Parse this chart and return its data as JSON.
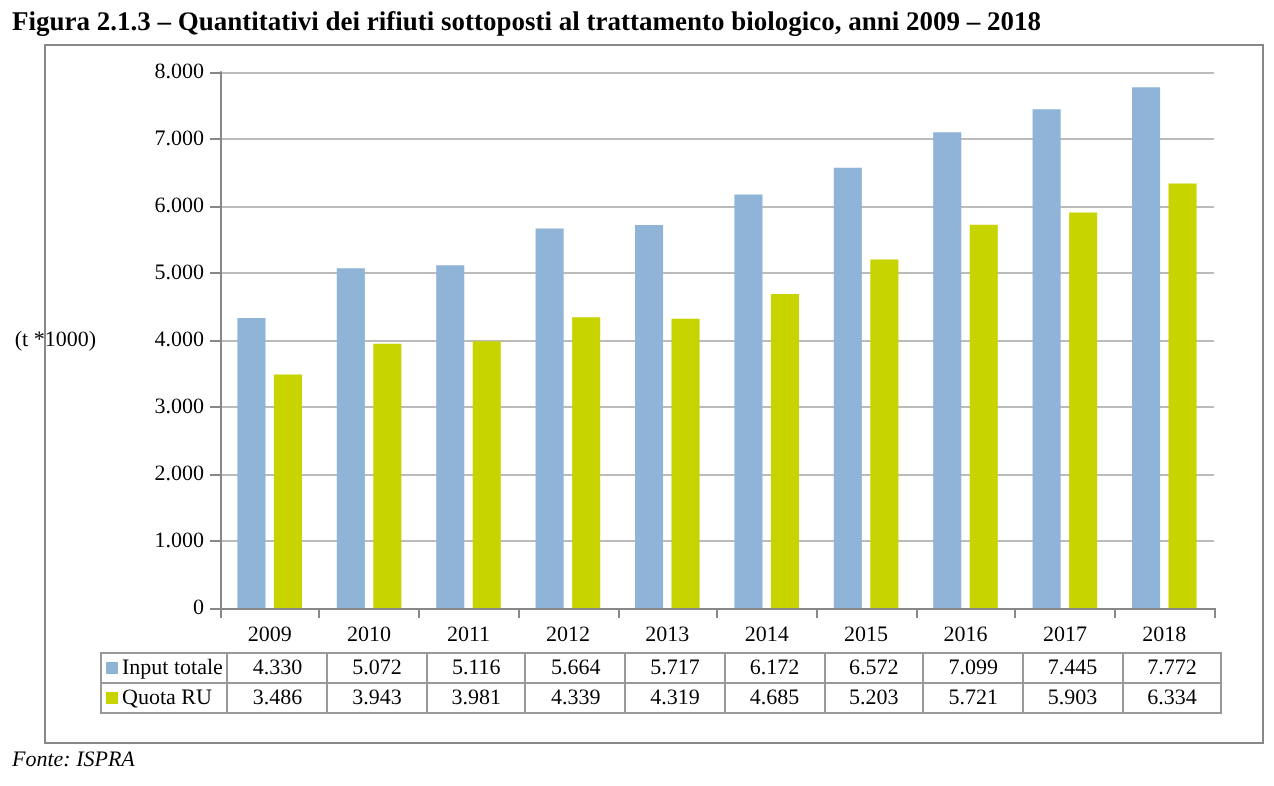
{
  "chart_data": {
    "type": "bar",
    "title": "Figura 2.1.3 – Quantitativi dei rifiuti sottoposti al trattamento biologico, anni 2009 – 2018",
    "ylabel": "(t *1000)",
    "categories": [
      "2009",
      "2010",
      "2011",
      "2012",
      "2013",
      "2014",
      "2015",
      "2016",
      "2017",
      "2018"
    ],
    "series": [
      {
        "name": "Input totale",
        "color": "#8fb4d8",
        "values": [
          4330,
          5072,
          5116,
          5664,
          5717,
          6172,
          6572,
          7099,
          7445,
          7772
        ],
        "value_labels": [
          "4.330",
          "5.072",
          "5.116",
          "5.664",
          "5.717",
          "6.172",
          "6.572",
          "7.099",
          "7.445",
          "7.772"
        ]
      },
      {
        "name": "Quota RU",
        "color": "#c8d400",
        "values": [
          3486,
          3943,
          3981,
          4339,
          4319,
          4685,
          5203,
          5721,
          5903,
          6334
        ],
        "value_labels": [
          "3.486",
          "3.943",
          "3.981",
          "4.339",
          "4.319",
          "4.685",
          "5.203",
          "5.721",
          "5.903",
          "6.334"
        ]
      }
    ],
    "ylim": [
      0,
      8000
    ],
    "yticks": [
      {
        "value": 0,
        "label": "0"
      },
      {
        "value": 1000,
        "label": "1.000"
      },
      {
        "value": 2000,
        "label": "2.000"
      },
      {
        "value": 3000,
        "label": "3.000"
      },
      {
        "value": 4000,
        "label": "4.000"
      },
      {
        "value": 5000,
        "label": "5.000"
      },
      {
        "value": 6000,
        "label": "6.000"
      },
      {
        "value": 7000,
        "label": "7.000"
      },
      {
        "value": 8000,
        "label": "8.000"
      }
    ],
    "grid": "y",
    "legend": "bottom",
    "annotations": [
      "Fonte: ISPRA"
    ]
  }
}
